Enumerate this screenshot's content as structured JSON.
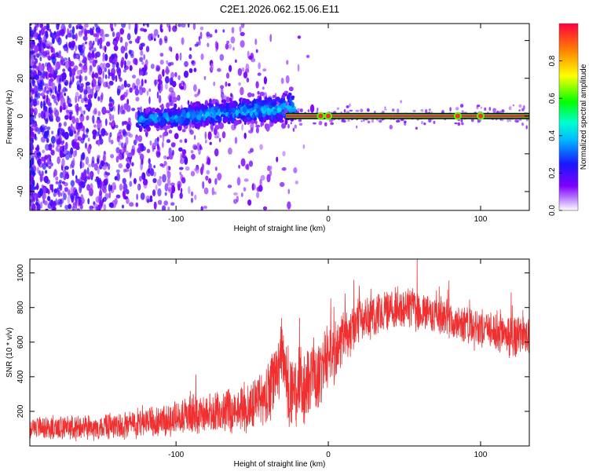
{
  "title": "C2E1.2026.062.15.06.E11",
  "colors": {
    "snr_line": "#f03030",
    "axis": "#000000",
    "trace_band": "#000000",
    "trace_green": "#22dd22",
    "trace_red": "#ee2244"
  },
  "chart_data": [
    {
      "type": "heatmap",
      "title": "C2E1.2026.062.15.06.E11",
      "xlabel": "Height of straight line (km)",
      "ylabel": "Frequency (Hz)",
      "xlim": [
        -196,
        132
      ],
      "ylim": [
        -50,
        49
      ],
      "xticks": [
        -100,
        0,
        100
      ],
      "xtick_labels": [
        "-100",
        "0",
        "100"
      ],
      "yticks": [
        -40,
        -20,
        0,
        20,
        40
      ],
      "ytick_labels": [
        "-40",
        "-20",
        "0",
        "20",
        "40"
      ],
      "colorbar": {
        "label": "Normalized spectral amplitude",
        "range": [
          0,
          1
        ],
        "ticks": [
          0.0,
          0.2,
          0.4,
          0.6,
          0.8
        ],
        "tick_labels": [
          "0.0",
          "0.2",
          "0.4",
          "0.6",
          "0.8"
        ],
        "colormap": "rainbow (violet to red)"
      },
      "features": {
        "noise_region_x": [
          -196,
          -30
        ],
        "signal_trace_start_x": -125,
        "signal_trace_end_x": 132,
        "signal_frequency_hz": 0,
        "bright_spots_x": [
          -5,
          0,
          85,
          100
        ]
      }
    },
    {
      "type": "line",
      "xlabel": "Height of straight line (km)",
      "ylabel": "SNR (10 * v/v)",
      "xlim": [
        -196,
        132
      ],
      "ylim": [
        0,
        1080
      ],
      "xticks": [
        -100,
        0,
        100
      ],
      "xtick_labels": [
        "-100",
        "0",
        "100"
      ],
      "yticks": [
        200,
        400,
        600,
        800,
        1000
      ],
      "ytick_labels": [
        "200",
        "400",
        "600",
        "800",
        "1000"
      ],
      "series": [
        {
          "name": "SNR",
          "x": [
            -196,
            -180,
            -160,
            -140,
            -120,
            -100,
            -80,
            -60,
            -50,
            -40,
            -35,
            -30,
            -25,
            -20,
            -15,
            -10,
            -5,
            0,
            5,
            10,
            15,
            20,
            30,
            40,
            50,
            60,
            70,
            80,
            90,
            100,
            110,
            120,
            132
          ],
          "values": [
            110,
            105,
            110,
            115,
            130,
            165,
            185,
            210,
            240,
            290,
            420,
            480,
            330,
            280,
            350,
            400,
            430,
            520,
            560,
            620,
            660,
            720,
            760,
            790,
            810,
            780,
            760,
            730,
            700,
            680,
            660,
            640,
            620
          ],
          "spread": [
            70,
            70,
            75,
            80,
            90,
            110,
            120,
            140,
            160,
            190,
            250,
            280,
            260,
            240,
            240,
            240,
            220,
            200,
            180,
            170,
            160,
            150,
            140,
            130,
            130,
            130,
            125,
            120,
            120,
            120,
            120,
            120,
            120
          ]
        }
      ]
    }
  ]
}
